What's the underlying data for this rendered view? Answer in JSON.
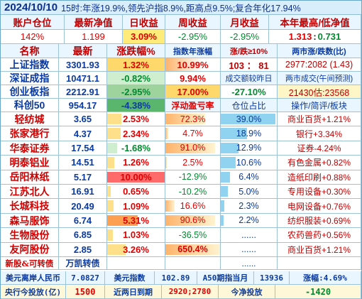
{
  "title": {
    "date": "2024/10/10",
    "summary": "15时:年涨19.9%,领先沪指8.9%,距高点9.5%;复合年化17.94%"
  },
  "header1": [
    "账户仓位",
    "最新净值",
    "日收益",
    "周收益",
    "月收益",
    "本年最高/低净值"
  ],
  "account": {
    "position": "142%",
    "nav": "1.199",
    "day": "3.09%",
    "week": "-2.95%",
    "month": "-2.95%",
    "high": "1.313",
    "sep": ":",
    "low": "0.731"
  },
  "header2": {
    "name": "名称",
    "latest": "最新",
    "chg": "涨跌幅%",
    "yearchg": "指数年涨幅",
    "updown": "涨/跌≥10%",
    "market": "两市涨/跌数(比)"
  },
  "indices": [
    {
      "name": "上证指数",
      "latest": "3301.93",
      "chg": "1.32%",
      "extra": "10.99%",
      "col5": "103 ： 81",
      "col6": "2977:2082 (1.43)"
    },
    {
      "name": "深证成指",
      "latest": "10471.1",
      "chg": "-0.82%",
      "extra": "9.94%",
      "col5": "成交额较昨日",
      "col6": "两市成交(午间预测)"
    },
    {
      "name": "创业板指",
      "latest": "2212.91",
      "chg": "-2.95%",
      "extra": "17.00%",
      "col5": "-27.10%",
      "col6": "21430估:23568"
    },
    {
      "name": "科创50",
      "latest": "954.17",
      "chg": "-4.38%",
      "extra": "浮动盈亏率",
      "col5": "仓位占比",
      "col6": "操作/简评/板块"
    }
  ],
  "stocks": [
    {
      "name": "轻纺城",
      "latest": "3.65",
      "chg": "2.53%",
      "pl": "72.3%",
      "pos": "39.0%",
      "note": "商业百货+1.21%"
    },
    {
      "name": "张家港行",
      "latest": "4.37",
      "chg": "2.34%",
      "pl": "4.7%",
      "pos": "18.9%",
      "note": "银行+3.34%"
    },
    {
      "name": "华泰证券",
      "latest": "17.54",
      "chg": "-1.68%",
      "pl": "91.0%",
      "pos": "12.9%",
      "note": "证券-4.24%"
    },
    {
      "name": "明泰铝业",
      "latest": "14.51",
      "chg": "1.26%",
      "pl": "2.5%",
      "pos": "10.6%",
      "note": "有色金属+0.82%"
    },
    {
      "name": "岳阳林纸",
      "latest": "5.17",
      "chg": "10.00%",
      "pl": "-12.9%",
      "pos": "6.4%",
      "note": "造纸印刷+0.88%"
    },
    {
      "name": "江苏北人",
      "latest": "16.91",
      "chg": "0.65%",
      "pl": "-10.2%",
      "pos": "5.0%",
      "note": "专用设备+0.30%"
    },
    {
      "name": "长城科技",
      "latest": "20.49",
      "chg": "1.09%",
      "pl": "16.6%",
      "pos": "2.3%",
      "note": "电网设备+0.76%"
    },
    {
      "name": "森马服饰",
      "latest": "6.74",
      "chg": "5.31%",
      "pl": "90.6%",
      "pos": "2.2%",
      "note": "纺织服装+0.69%"
    },
    {
      "name": "生物股份",
      "latest": "6.85",
      "chg": "1.03%",
      "pl": "-36.5%",
      "pos": "......",
      "note": "农药兽药+0.56%"
    },
    {
      "name": "友阿股份",
      "latest": "2.85",
      "chg": "3.26%",
      "pl": "650.4%",
      "pos": "......",
      "note": "商业百货+1.21%"
    }
  ],
  "lastrow": {
    "name": "新股&可转债",
    "latest": "万凯转债",
    "pos": "......"
  },
  "foot1": {
    "a": "美元离岸人民币",
    "b": "7.0827",
    "c": "美元指数",
    "d": "102.89",
    "e": "A50期指当月",
    "f": "13936",
    "g": "涨幅:4.69%"
  },
  "foot2": {
    "a": "央行今投放(亿)",
    "b": "1500",
    "c": "近两日到期",
    "d": "2920;2780",
    "e": "今净投放",
    "f": "-1420"
  }
}
